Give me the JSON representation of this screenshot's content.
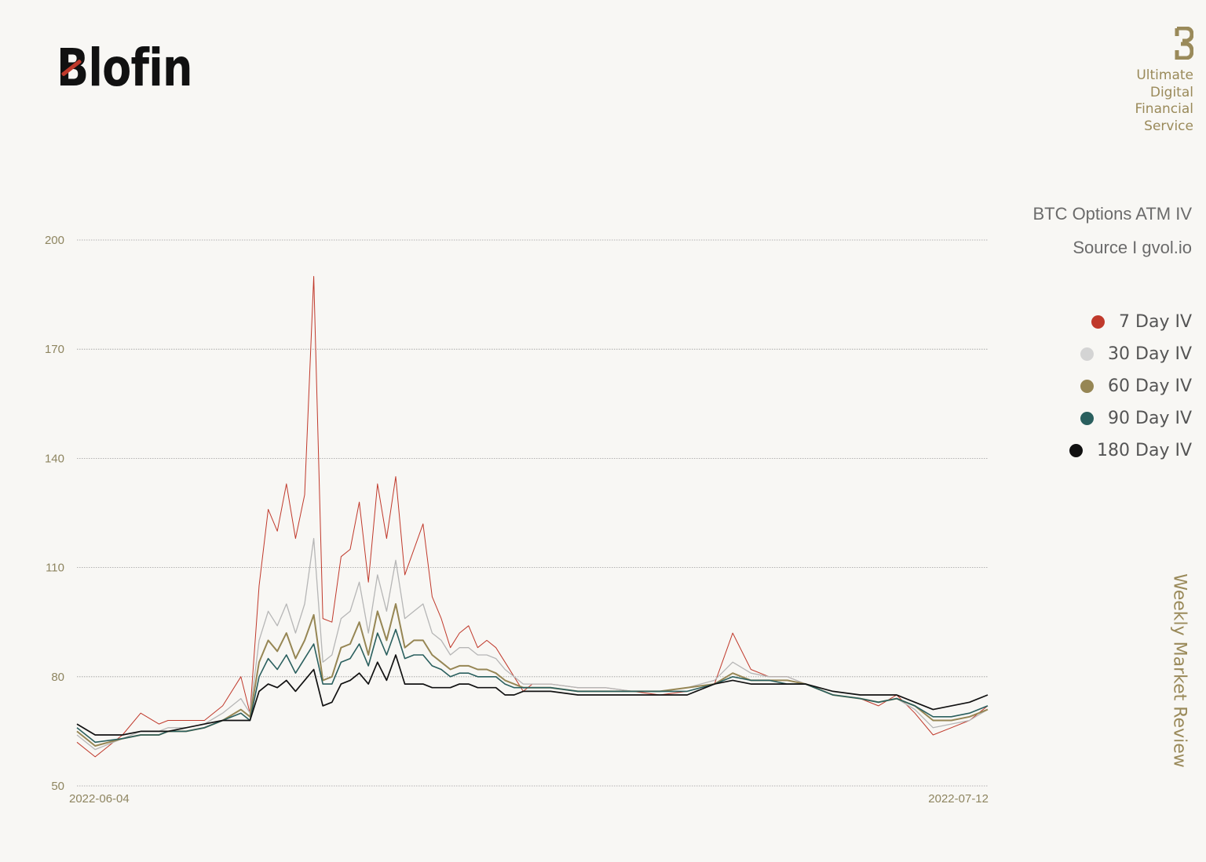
{
  "header": {
    "logo_text": "Blofin",
    "tagline": [
      "Ultimate",
      "Digital",
      "Financial",
      "Service"
    ]
  },
  "side_label": "Weekly Market Review",
  "chart_data": {
    "type": "line",
    "title": "BTC Options ATM IV",
    "subtitle": "Source I gvol.io",
    "xlabel": "",
    "ylabel": "",
    "ylim": [
      50,
      200
    ],
    "yticks": [
      50,
      80,
      110,
      140,
      170,
      200
    ],
    "x_range": [
      "2022-06-04",
      "2022-07-12"
    ],
    "xtick_labels": [
      "2022-06-04",
      "2022-07-12"
    ],
    "grid": "horizontal dotted",
    "legend_position": "right",
    "x_fraction": [
      0.0,
      0.02,
      0.05,
      0.07,
      0.09,
      0.1,
      0.12,
      0.14,
      0.16,
      0.18,
      0.19,
      0.2,
      0.21,
      0.22,
      0.23,
      0.24,
      0.25,
      0.26,
      0.27,
      0.28,
      0.29,
      0.3,
      0.31,
      0.32,
      0.33,
      0.34,
      0.35,
      0.36,
      0.37,
      0.38,
      0.39,
      0.4,
      0.41,
      0.42,
      0.43,
      0.44,
      0.45,
      0.46,
      0.47,
      0.48,
      0.49,
      0.5,
      0.52,
      0.55,
      0.58,
      0.61,
      0.64,
      0.67,
      0.7,
      0.72,
      0.74,
      0.76,
      0.78,
      0.8,
      0.83,
      0.86,
      0.88,
      0.9,
      0.92,
      0.94,
      0.96,
      0.98,
      1.0
    ],
    "series": [
      {
        "name": "7 Day IV",
        "color": "#c0392b",
        "values": [
          62,
          58,
          64,
          70,
          67,
          68,
          68,
          68,
          72,
          80,
          70,
          105,
          126,
          120,
          133,
          118,
          130,
          190,
          96,
          95,
          113,
          115,
          128,
          106,
          133,
          118,
          135,
          108,
          115,
          122,
          102,
          96,
          88,
          92,
          94,
          88,
          90,
          88,
          84,
          80,
          76,
          78,
          78,
          77,
          77,
          76,
          75,
          76,
          78,
          92,
          82,
          80,
          80,
          78,
          75,
          74,
          72,
          75,
          70,
          64,
          66,
          68,
          72
        ]
      },
      {
        "name": "30 Day IV",
        "color": "#b6b6b6",
        "values": [
          64,
          60,
          63,
          65,
          65,
          66,
          66,
          67,
          70,
          74,
          70,
          90,
          98,
          94,
          100,
          92,
          100,
          118,
          84,
          86,
          96,
          98,
          106,
          92,
          108,
          98,
          112,
          96,
          98,
          100,
          92,
          90,
          86,
          88,
          88,
          86,
          86,
          85,
          82,
          80,
          78,
          78,
          78,
          77,
          77,
          76,
          76,
          77,
          79,
          84,
          81,
          80,
          80,
          78,
          75,
          74,
          73,
          74,
          71,
          66,
          67,
          68,
          71
        ]
      },
      {
        "name": "60 Day IV",
        "color": "#968654",
        "values": [
          65,
          61,
          63,
          64,
          64,
          65,
          65,
          66,
          68,
          71,
          69,
          84,
          90,
          87,
          92,
          85,
          90,
          97,
          79,
          80,
          88,
          89,
          95,
          86,
          98,
          90,
          100,
          88,
          90,
          90,
          86,
          84,
          82,
          83,
          83,
          82,
          82,
          81,
          79,
          78,
          77,
          77,
          77,
          76,
          76,
          76,
          76,
          77,
          78,
          81,
          79,
          79,
          79,
          78,
          75,
          74,
          73,
          74,
          72,
          68,
          68,
          69,
          71
        ]
      },
      {
        "name": "90 Day IV",
        "color": "#2a5f5e",
        "values": [
          66,
          62,
          63,
          64,
          64,
          65,
          65,
          66,
          68,
          70,
          68,
          80,
          85,
          82,
          86,
          81,
          85,
          89,
          78,
          78,
          84,
          85,
          89,
          83,
          92,
          86,
          93,
          85,
          86,
          86,
          83,
          82,
          80,
          81,
          81,
          80,
          80,
          80,
          78,
          77,
          77,
          77,
          77,
          76,
          76,
          76,
          76,
          76,
          78,
          80,
          79,
          79,
          78,
          78,
          75,
          74,
          73,
          74,
          72,
          69,
          69,
          70,
          72
        ]
      },
      {
        "name": "180 Day IV",
        "color": "#111111",
        "values": [
          67,
          64,
          64,
          65,
          65,
          65,
          66,
          67,
          68,
          68,
          68,
          76,
          78,
          77,
          79,
          76,
          79,
          82,
          72,
          73,
          78,
          79,
          81,
          78,
          84,
          79,
          86,
          78,
          78,
          78,
          77,
          77,
          77,
          78,
          78,
          77,
          77,
          77,
          75,
          75,
          76,
          76,
          76,
          75,
          75,
          75,
          75,
          75,
          78,
          79,
          78,
          78,
          78,
          78,
          76,
          75,
          75,
          75,
          73,
          71,
          72,
          73,
          75
        ]
      }
    ]
  }
}
